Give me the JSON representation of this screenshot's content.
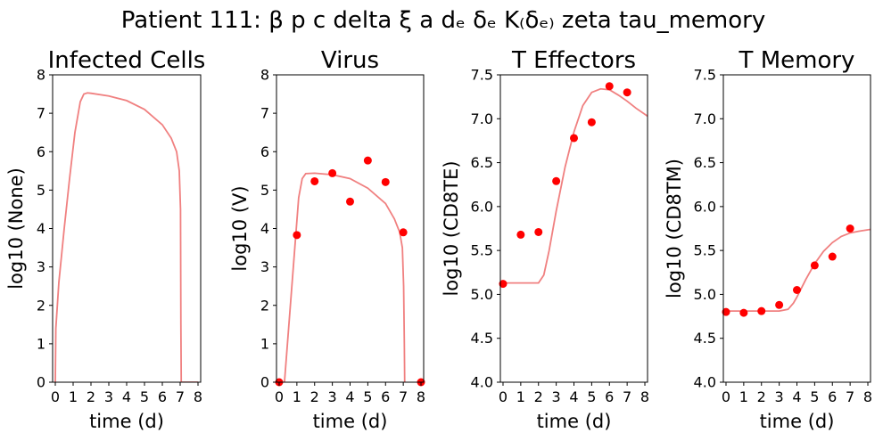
{
  "figure": {
    "suptitle": "Patient 111: β p c delta ξ a dₑ δₑ K₍δₑ₎ zeta tau_memory"
  },
  "colors": {
    "model_line": "#f08080",
    "observations": "#ff0000"
  },
  "chart_data": [
    {
      "type": "line",
      "title": "Infected Cells",
      "xlabel": "time (d)",
      "ylabel": "log10 (None)",
      "xlim": [
        -0.15,
        8.15
      ],
      "ylim": [
        0,
        8
      ],
      "xticks": [
        0,
        1,
        2,
        3,
        4,
        5,
        6,
        7,
        8
      ],
      "yticks": [
        0,
        1,
        2,
        3,
        4,
        5,
        6,
        7,
        8
      ],
      "ytick_labels": [
        "0",
        "1",
        "2",
        "3",
        "4",
        "5",
        "6",
        "7",
        "8"
      ],
      "grid": false,
      "series": [
        {
          "kind": "line",
          "x": [
            0,
            0.03,
            0.2,
            0.5,
            0.8,
            1.1,
            1.4,
            1.6,
            1.8,
            2.0,
            3.0,
            4.0,
            5.0,
            6.0,
            6.5,
            6.8,
            6.95,
            7.02,
            7.04,
            7.06,
            8.0
          ],
          "y": [
            0,
            1.4,
            2.6,
            4.0,
            5.3,
            6.5,
            7.3,
            7.5,
            7.53,
            7.52,
            7.45,
            7.33,
            7.1,
            6.7,
            6.35,
            6.0,
            5.5,
            4.5,
            1.5,
            0,
            0
          ]
        }
      ]
    },
    {
      "type": "line",
      "title": "Virus",
      "xlabel": "time (d)",
      "ylabel": "log10 (V)",
      "xlim": [
        -0.15,
        8.15
      ],
      "ylim": [
        0,
        8
      ],
      "xticks": [
        0,
        1,
        2,
        3,
        4,
        5,
        6,
        7,
        8
      ],
      "yticks": [
        0,
        1,
        2,
        3,
        4,
        5,
        6,
        7,
        8
      ],
      "ytick_labels": [
        "0",
        "1",
        "2",
        "3",
        "4",
        "5",
        "6",
        "7",
        "8"
      ],
      "grid": false,
      "series": [
        {
          "kind": "line",
          "x": [
            0.3,
            0.6,
            0.9,
            1.1,
            1.3,
            1.5,
            2.0,
            3.0,
            4.0,
            5.0,
            6.0,
            6.5,
            6.8,
            6.95,
            7.02,
            7.06,
            7.08
          ],
          "y": [
            0,
            1.8,
            3.6,
            4.8,
            5.3,
            5.43,
            5.44,
            5.4,
            5.3,
            5.05,
            4.65,
            4.25,
            3.9,
            3.5,
            2.5,
            1.0,
            0
          ]
        },
        {
          "kind": "scatter",
          "x": [
            0,
            1,
            2,
            3,
            4,
            5,
            6,
            7,
            8
          ],
          "y": [
            0,
            3.83,
            5.23,
            5.44,
            4.7,
            5.77,
            5.21,
            3.9,
            0
          ]
        }
      ]
    },
    {
      "type": "line",
      "title": "T Effectors",
      "xlabel": "time (d)",
      "ylabel": "log10 (CD8TE)",
      "xlim": [
        -0.15,
        8.15
      ],
      "ylim": [
        4.0,
        7.5
      ],
      "xticks": [
        0,
        1,
        2,
        3,
        4,
        5,
        6,
        7,
        8
      ],
      "yticks": [
        4.0,
        4.5,
        5.0,
        5.5,
        6.0,
        6.5,
        7.0,
        7.5
      ],
      "ytick_labels": [
        "4.0",
        "4.5",
        "5.0",
        "5.5",
        "6.0",
        "6.5",
        "7.0",
        "7.5"
      ],
      "grid": false,
      "series": [
        {
          "kind": "line",
          "x": [
            -0.15,
            1.0,
            2.0,
            2.3,
            2.6,
            3.0,
            3.5,
            4.0,
            4.5,
            5.0,
            5.5,
            6.0,
            6.5,
            7.0,
            7.5,
            8.15
          ],
          "y": [
            5.13,
            5.13,
            5.13,
            5.22,
            5.5,
            5.95,
            6.45,
            6.85,
            7.15,
            7.3,
            7.34,
            7.33,
            7.27,
            7.2,
            7.12,
            7.03
          ]
        },
        {
          "kind": "scatter",
          "x": [
            0,
            1,
            2,
            3,
            4,
            5,
            6,
            7
          ],
          "y": [
            5.12,
            5.68,
            5.71,
            6.29,
            6.78,
            6.96,
            7.37,
            7.3
          ]
        }
      ]
    },
    {
      "type": "line",
      "title": "T Memory",
      "xlabel": "time (d)",
      "ylabel": "log10 (CD8TM)",
      "xlim": [
        -0.15,
        8.15
      ],
      "ylim": [
        4.0,
        7.5
      ],
      "xticks": [
        0,
        1,
        2,
        3,
        4,
        5,
        6,
        7,
        8
      ],
      "yticks": [
        4.0,
        4.5,
        5.0,
        5.5,
        6.0,
        6.5,
        7.0,
        7.5
      ],
      "ytick_labels": [
        "4.0",
        "4.5",
        "5.0",
        "5.5",
        "6.0",
        "6.5",
        "7.0",
        "7.5"
      ],
      "grid": false,
      "series": [
        {
          "kind": "line",
          "x": [
            -0.15,
            1.0,
            2.0,
            3.0,
            3.5,
            3.8,
            4.0,
            4.5,
            5.0,
            5.5,
            6.0,
            6.5,
            7.0,
            7.5,
            8.15
          ],
          "y": [
            4.81,
            4.81,
            4.81,
            4.81,
            4.83,
            4.9,
            4.97,
            5.17,
            5.35,
            5.49,
            5.59,
            5.66,
            5.7,
            5.72,
            5.74
          ]
        },
        {
          "kind": "scatter",
          "x": [
            0,
            1,
            2,
            3,
            4,
            5,
            6,
            7
          ],
          "y": [
            4.8,
            4.79,
            4.81,
            4.88,
            5.05,
            5.33,
            5.43,
            5.75
          ]
        }
      ]
    }
  ]
}
